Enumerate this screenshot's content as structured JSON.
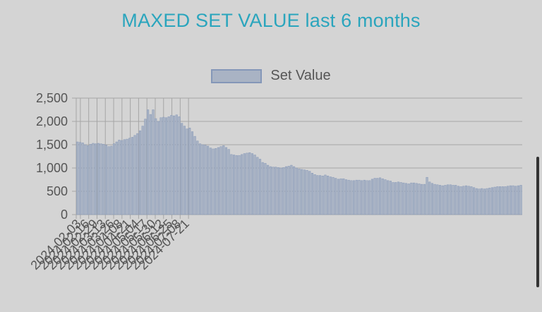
{
  "title": "MAXED SET VALUE last 6 months",
  "chart_data": {
    "type": "bar",
    "title": "MAXED SET VALUE last 6 months",
    "xlabel": "",
    "ylabel": "",
    "ylim": [
      0,
      2500
    ],
    "yticks": [
      "2,500",
      "2,000",
      "1,500",
      "1,000",
      "500",
      "0"
    ],
    "ytick_values": [
      2500,
      2000,
      1500,
      1000,
      500,
      0
    ],
    "xtick_labels": [
      "2024-02-03",
      "2024-02-16",
      "2024-02-29",
      "2024-03-13",
      "2024-03-26",
      "2024-04-08",
      "2024-04-21",
      "2024-05-04",
      "2024-05-17",
      "2024-05-30",
      "2024-06-12",
      "2024-06-25",
      "2024-07-08",
      "2024-07-21"
    ],
    "grid": true,
    "legend": "top-center",
    "series": [
      {
        "name": "Set Value",
        "color": "#a9b3c4",
        "border": "#8497b8",
        "values": [
          1560,
          1550,
          1540,
          1500,
          1480,
          1510,
          1530,
          1520,
          1530,
          1520,
          1510,
          1490,
          1460,
          1470,
          1520,
          1560,
          1600,
          1590,
          1610,
          1620,
          1640,
          1660,
          1700,
          1740,
          1800,
          1900,
          2050,
          2250,
          2150,
          2250,
          2060,
          2000,
          2080,
          2090,
          2080,
          2100,
          2130,
          2120,
          2140,
          2100,
          1960,
          1900,
          1840,
          1860,
          1780,
          1680,
          1580,
          1520,
          1500,
          1490,
          1470,
          1430,
          1410,
          1420,
          1440,
          1460,
          1480,
          1440,
          1400,
          1290,
          1280,
          1270,
          1270,
          1290,
          1310,
          1320,
          1330,
          1310,
          1280,
          1230,
          1190,
          1120,
          1100,
          1060,
          1030,
          1020,
          1020,
          1010,
          1000,
          1010,
          1030,
          1040,
          1060,
          1030,
          1000,
          980,
          970,
          960,
          950,
          930,
          890,
          860,
          840,
          840,
          830,
          850,
          830,
          810,
          800,
          780,
          760,
          770,
          770,
          750,
          740,
          730,
          730,
          740,
          740,
          730,
          740,
          730,
          730,
          760,
          780,
          780,
          790,
          770,
          750,
          730,
          720,
          690,
          690,
          700,
          690,
          680,
          670,
          660,
          680,
          680,
          670,
          660,
          650,
          650,
          800,
          700,
          670,
          650,
          640,
          630,
          620,
          630,
          640,
          640,
          630,
          630,
          610,
          600,
          610,
          620,
          610,
          600,
          580,
          560,
          550,
          560,
          550,
          560,
          570,
          580,
          590,
          600,
          600,
          600,
          600,
          610,
          620,
          620,
          610,
          620,
          630
        ]
      }
    ]
  }
}
